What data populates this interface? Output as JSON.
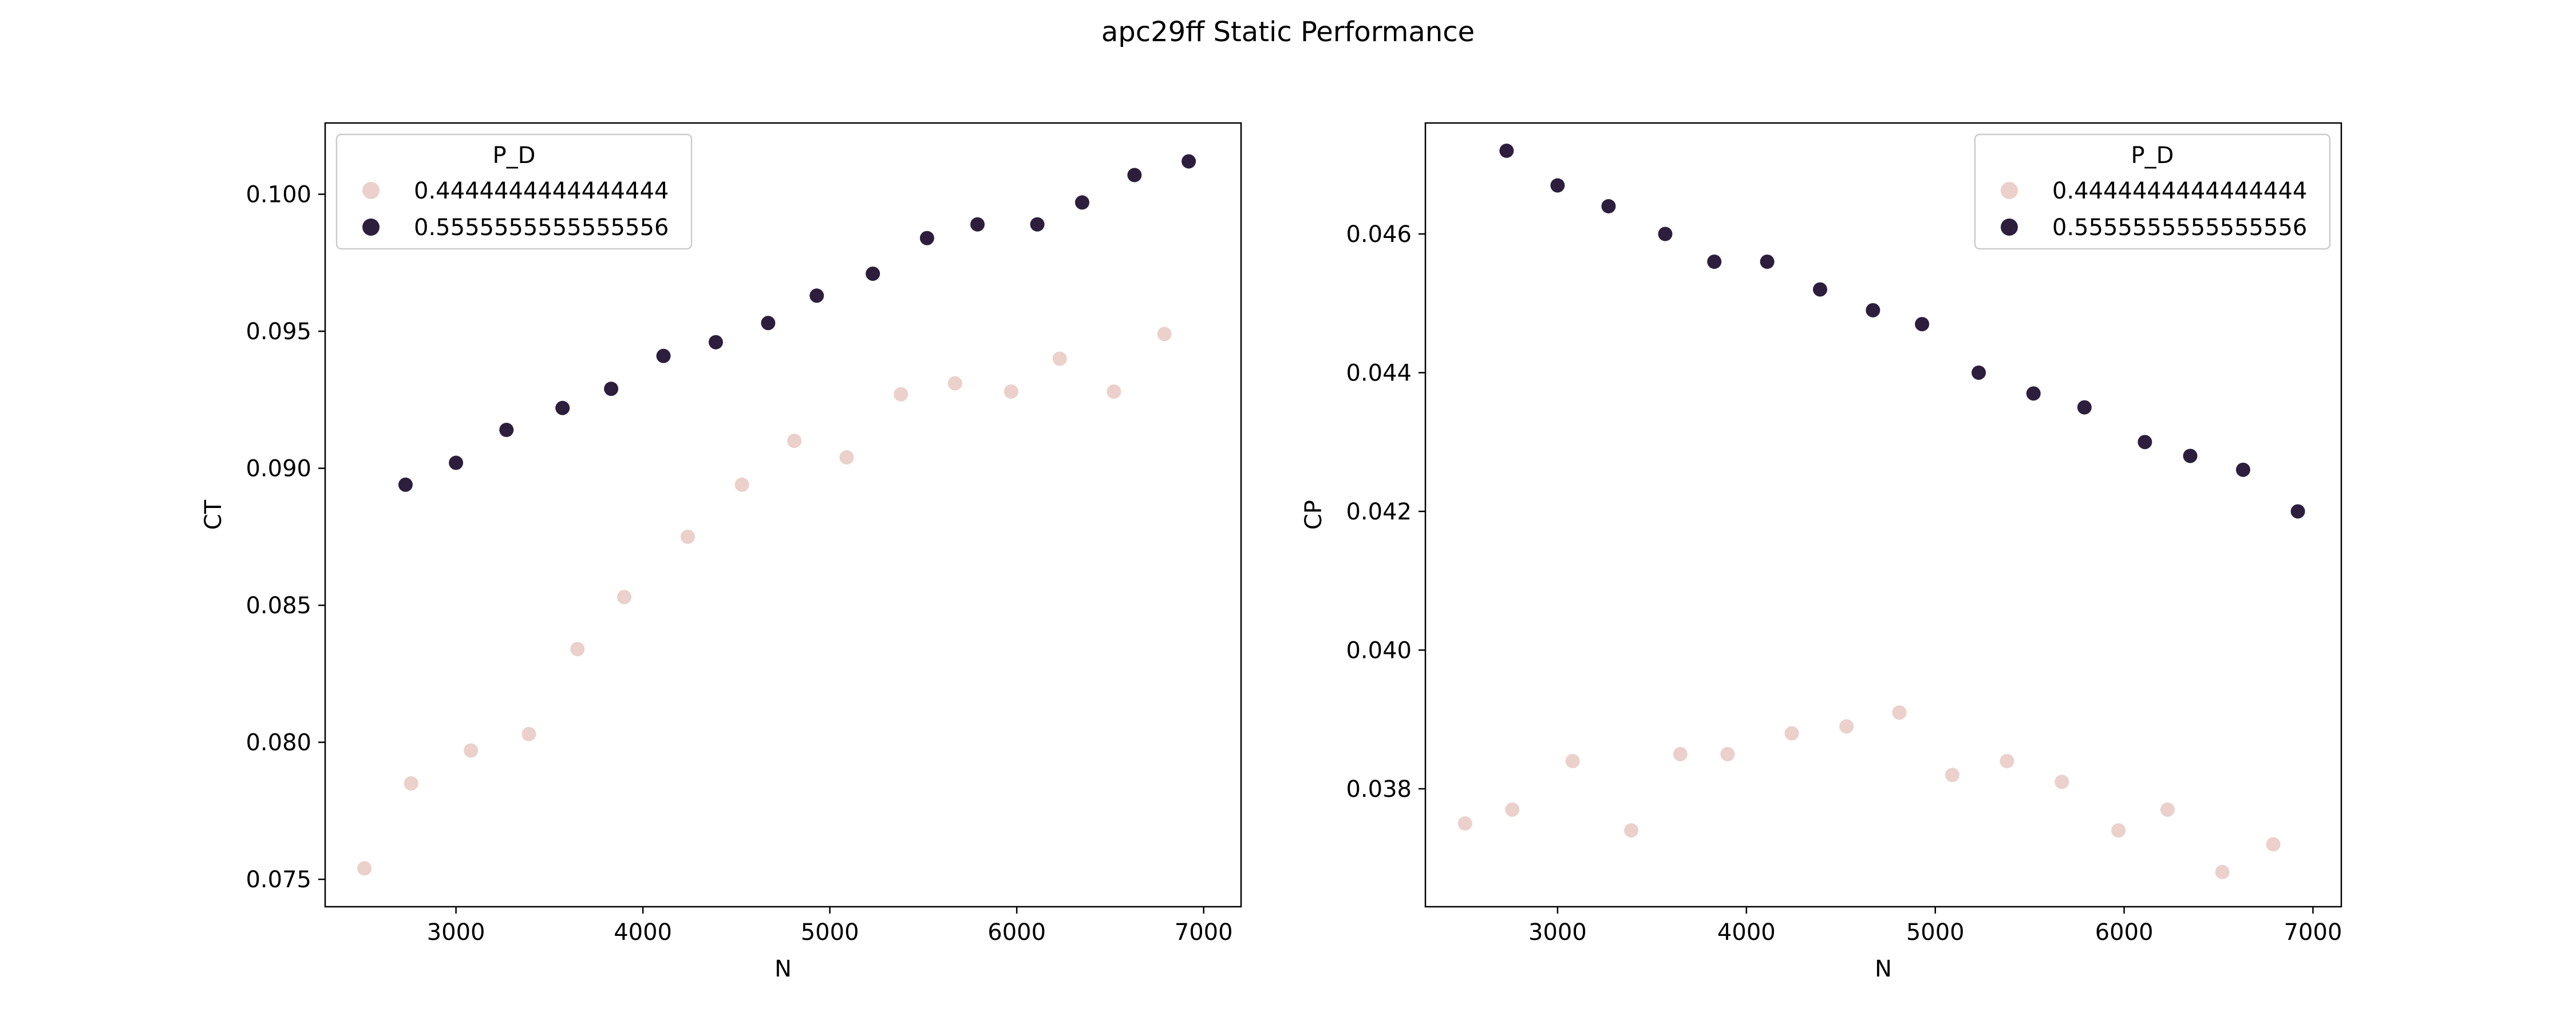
{
  "figure": {
    "title": "apc29ff Static Performance"
  },
  "colors": {
    "light_point": "#ebd0cb",
    "dark_point": "#2d1e3e",
    "axis": "#000000",
    "legend_border": "#cccccc"
  },
  "chart_data": [
    {
      "type": "scatter",
      "xlabel": "N",
      "ylabel": "CT",
      "xlim": [
        2300,
        7200
      ],
      "ylim": [
        0.074,
        0.1026
      ],
      "xticks": [
        3000,
        4000,
        5000,
        6000,
        7000
      ],
      "xtick_labels": [
        "3000",
        "4000",
        "5000",
        "6000",
        "7000"
      ],
      "yticks": [
        0.075,
        0.08,
        0.085,
        0.09,
        0.095,
        0.1
      ],
      "ytick_labels": [
        "0.075",
        "0.080",
        "0.085",
        "0.090",
        "0.095",
        "0.100"
      ],
      "legend": {
        "title": "P_D",
        "position": "upper-left"
      },
      "series": [
        {
          "name": "0.4444444444444444",
          "color": "#ebd0cb",
          "points": [
            [
              2510,
              0.0754
            ],
            [
              2760,
              0.0785
            ],
            [
              3080,
              0.0797
            ],
            [
              3390,
              0.0803
            ],
            [
              3650,
              0.0834
            ],
            [
              3900,
              0.0853
            ],
            [
              4240,
              0.0875
            ],
            [
              4530,
              0.0894
            ],
            [
              4810,
              0.091
            ],
            [
              5090,
              0.0904
            ],
            [
              5380,
              0.0927
            ],
            [
              5670,
              0.0931
            ],
            [
              5970,
              0.0928
            ],
            [
              6230,
              0.094
            ],
            [
              6520,
              0.0928
            ],
            [
              6790,
              0.0949
            ]
          ]
        },
        {
          "name": "0.5555555555555556",
          "color": "#2d1e3e",
          "points": [
            [
              2730,
              0.0894
            ],
            [
              3000,
              0.0902
            ],
            [
              3270,
              0.0914
            ],
            [
              3570,
              0.0922
            ],
            [
              3830,
              0.0929
            ],
            [
              4110,
              0.0941
            ],
            [
              4390,
              0.0946
            ],
            [
              4670,
              0.0953
            ],
            [
              4930,
              0.0963
            ],
            [
              5230,
              0.0971
            ],
            [
              5520,
              0.0984
            ],
            [
              5790,
              0.0989
            ],
            [
              6110,
              0.0989
            ],
            [
              6350,
              0.0997
            ],
            [
              6630,
              0.1007
            ],
            [
              6920,
              0.1012
            ]
          ]
        }
      ]
    },
    {
      "type": "scatter",
      "xlabel": "N",
      "ylabel": "CP",
      "xlim": [
        2300,
        7150
      ],
      "ylim": [
        0.0363,
        0.0476
      ],
      "xticks": [
        3000,
        4000,
        5000,
        6000,
        7000
      ],
      "xtick_labels": [
        "3000",
        "4000",
        "5000",
        "6000",
        "7000"
      ],
      "yticks": [
        0.038,
        0.04,
        0.042,
        0.044,
        0.046
      ],
      "ytick_labels": [
        "0.038",
        "0.040",
        "0.042",
        "0.044",
        "0.046"
      ],
      "legend": {
        "title": "P_D",
        "position": "upper-right"
      },
      "series": [
        {
          "name": "0.4444444444444444",
          "color": "#ebd0cb",
          "points": [
            [
              2510,
              0.0375
            ],
            [
              2760,
              0.0377
            ],
            [
              3080,
              0.0384
            ],
            [
              3390,
              0.0374
            ],
            [
              3650,
              0.0385
            ],
            [
              3900,
              0.0385
            ],
            [
              4240,
              0.0388
            ],
            [
              4530,
              0.0389
            ],
            [
              4810,
              0.0391
            ],
            [
              5090,
              0.0382
            ],
            [
              5380,
              0.0384
            ],
            [
              5670,
              0.0381
            ],
            [
              5970,
              0.0374
            ],
            [
              6230,
              0.0377
            ],
            [
              6520,
              0.0368
            ],
            [
              6790,
              0.0372
            ]
          ]
        },
        {
          "name": "0.5555555555555556",
          "color": "#2d1e3e",
          "points": [
            [
              2730,
              0.0472
            ],
            [
              3000,
              0.0467
            ],
            [
              3270,
              0.0464
            ],
            [
              3570,
              0.046
            ],
            [
              3830,
              0.0456
            ],
            [
              4110,
              0.0456
            ],
            [
              4390,
              0.0452
            ],
            [
              4670,
              0.0449
            ],
            [
              4930,
              0.0447
            ],
            [
              5230,
              0.044
            ],
            [
              5520,
              0.0437
            ],
            [
              5790,
              0.0435
            ],
            [
              6110,
              0.043
            ],
            [
              6350,
              0.0428
            ],
            [
              6630,
              0.0426
            ],
            [
              6920,
              0.042
            ]
          ]
        }
      ]
    }
  ]
}
